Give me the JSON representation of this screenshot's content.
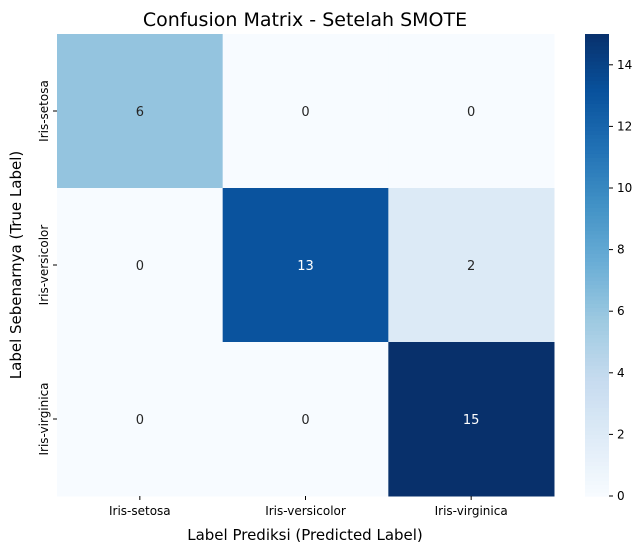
{
  "chart_data": {
    "type": "heatmap",
    "title": "Confusion Matrix - Setelah SMOTE",
    "xlabel": "Label Prediksi (Predicted Label)",
    "ylabel": "Label Sebenarnya (True Label)",
    "x_categories": [
      "Iris-setosa",
      "Iris-versicolor",
      "Iris-virginica"
    ],
    "y_categories": [
      "Iris-setosa",
      "Iris-versicolor",
      "Iris-virginica"
    ],
    "values": [
      [
        6,
        0,
        0
      ],
      [
        0,
        13,
        2
      ],
      [
        0,
        0,
        15
      ]
    ],
    "colormap": "Blues",
    "vmin": 0,
    "vmax": 15,
    "colorbar_ticks": [
      0,
      2,
      4,
      6,
      8,
      10,
      12,
      14
    ]
  }
}
